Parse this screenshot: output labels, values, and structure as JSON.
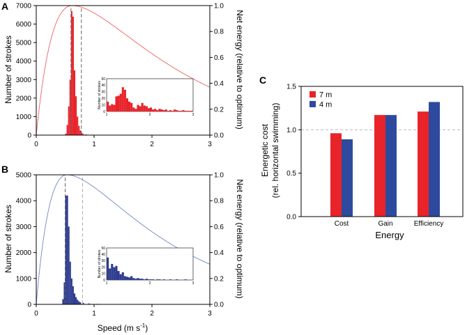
{
  "chart_data": [
    {
      "panel": "A",
      "type": "bar",
      "xlabel": "",
      "ylabel": "Number of strokes",
      "y2label": "Net energy (relative to optimum)",
      "xlim": [
        0,
        3
      ],
      "ylim": [
        0,
        7000
      ],
      "y2lim": [
        0,
        1.0
      ],
      "xticks": [
        "0",
        "1",
        "2",
        "3"
      ],
      "yticks": [
        "0",
        "1000",
        "2000",
        "3000",
        "4000",
        "5000",
        "6000",
        "7000"
      ],
      "y2ticks": [
        "0.0",
        "0.2",
        "0.4",
        "0.6",
        "0.8",
        "1.0"
      ],
      "color": "#e8232a",
      "line_color": "#f0706f",
      "bin_width": 0.025,
      "bins": [
        {
          "x": 0.5,
          "count": 80
        },
        {
          "x": 0.525,
          "count": 550
        },
        {
          "x": 0.55,
          "count": 1550
        },
        {
          "x": 0.575,
          "count": 3000
        },
        {
          "x": 0.6,
          "count": 6700
        },
        {
          "x": 0.625,
          "count": 6400
        },
        {
          "x": 0.65,
          "count": 3500
        },
        {
          "x": 0.675,
          "count": 2100
        },
        {
          "x": 0.7,
          "count": 1000
        },
        {
          "x": 0.725,
          "count": 500
        },
        {
          "x": 0.75,
          "count": 250
        },
        {
          "x": 0.775,
          "count": 120
        },
        {
          "x": 0.8,
          "count": 60
        },
        {
          "x": 0.85,
          "count": 40
        },
        {
          "x": 0.95,
          "count": 25
        },
        {
          "x": 1.1,
          "count": 20
        },
        {
          "x": 1.3,
          "count": 15
        },
        {
          "x": 1.6,
          "count": 10
        },
        {
          "x": 2.0,
          "count": 8
        }
      ],
      "curve": {
        "type": "net_energy",
        "peak_speed": 0.62,
        "min_speed": 0.0,
        "values_at_3": 0.37
      },
      "vlines": [
        {
          "x": 0.6,
          "style": "dashed",
          "color": "#666666"
        },
        {
          "x": 0.78,
          "style": "dashed",
          "color": "#666666"
        }
      ],
      "inset": {
        "ylabel": "Number of strokes",
        "xlim": [
          1,
          3
        ],
        "ylim": [
          0,
          50
        ],
        "xticks": [
          "1",
          "2",
          "3"
        ],
        "yticks": [
          "0",
          "10",
          "20",
          "30",
          "40",
          "50"
        ],
        "bin_width": 0.05,
        "values": [
          15,
          9,
          11,
          10,
          23,
          24,
          27,
          37,
          33,
          20,
          15,
          13,
          6,
          4,
          10,
          8,
          13,
          9,
          8,
          5,
          6,
          3,
          4,
          2,
          4,
          3,
          2,
          3,
          1,
          2,
          1,
          3,
          2,
          1,
          1,
          2,
          1,
          1,
          1,
          1
        ]
      }
    },
    {
      "panel": "B",
      "type": "bar",
      "xlabel": "Speed (m s",
      "xlabel_sup": "-1",
      "xlabel_end": ")",
      "ylabel": "Number of strokes",
      "y2label": "Net energy (relative to optimum)",
      "xlim": [
        0,
        3
      ],
      "ylim": [
        0,
        5000
      ],
      "y2lim": [
        0,
        1.0
      ],
      "xticks": [
        "0",
        "1",
        "2",
        "3"
      ],
      "yticks": [
        "0",
        "1000",
        "2000",
        "3000",
        "4000",
        "5000"
      ],
      "y2ticks": [
        "0.0",
        "0.2",
        "0.4",
        "0.6",
        "0.8",
        "1.0"
      ],
      "color": "#2e3d8f",
      "line_color": "#7b93c9",
      "bin_width": 0.025,
      "bins": [
        {
          "x": 0.45,
          "count": 200
        },
        {
          "x": 0.475,
          "count": 850
        },
        {
          "x": 0.5,
          "count": 4200
        },
        {
          "x": 0.525,
          "count": 4200
        },
        {
          "x": 0.55,
          "count": 3000
        },
        {
          "x": 0.575,
          "count": 1650
        },
        {
          "x": 0.6,
          "count": 1000
        },
        {
          "x": 0.625,
          "count": 700
        },
        {
          "x": 0.65,
          "count": 420
        },
        {
          "x": 0.675,
          "count": 280
        },
        {
          "x": 0.7,
          "count": 180
        },
        {
          "x": 0.725,
          "count": 120
        },
        {
          "x": 0.75,
          "count": 80
        },
        {
          "x": 0.8,
          "count": 55
        },
        {
          "x": 0.9,
          "count": 35
        },
        {
          "x": 1.05,
          "count": 20
        },
        {
          "x": 1.3,
          "count": 12
        },
        {
          "x": 1.6,
          "count": 8
        }
      ],
      "curve": {
        "type": "net_energy",
        "peak_speed": 0.53,
        "min_speed": 0.0,
        "values_at_3": 0.31
      },
      "vlines": [
        {
          "x": 0.5,
          "style": "dashed",
          "color": "#666666"
        },
        {
          "x": 0.8,
          "style": "dashed",
          "color": "#aaaaaa"
        }
      ],
      "inset": {
        "ylabel": "Number of strokes",
        "xlim": [
          1,
          3
        ],
        "ylim": [
          0,
          50
        ],
        "xticks": [
          "1",
          "2",
          "3"
        ],
        "yticks": [
          "0",
          "10",
          "20",
          "30",
          "40",
          "50"
        ],
        "bin_width": 0.05,
        "values": [
          35,
          18,
          25,
          20,
          22,
          14,
          9,
          12,
          6,
          5,
          4,
          6,
          3,
          2,
          3,
          2,
          2,
          1,
          2,
          1,
          1,
          1,
          0,
          1,
          1,
          0,
          1,
          0,
          0,
          1,
          0,
          0,
          1,
          0,
          0,
          0,
          1,
          0,
          0,
          0
        ]
      }
    },
    {
      "panel": "C",
      "type": "bar",
      "xlabel": "Energy",
      "ylabel": "Energetic cost",
      "ylabel2": "(rel. horizontal swimming)",
      "categories": [
        "Cost",
        "Gain",
        "Efficiency"
      ],
      "ylim": [
        0,
        1.5
      ],
      "yticks": [
        "0.0",
        "0.5",
        "1.0",
        "1.5"
      ],
      "reference_line": 1.0,
      "legend_position": "top-left",
      "series": [
        {
          "name": "7 m",
          "color": "#e8232a",
          "values": [
            0.96,
            1.17,
            1.21
          ]
        },
        {
          "name": "4 m",
          "color": "#2e4a9e",
          "values": [
            0.89,
            1.17,
            1.32
          ]
        }
      ]
    }
  ]
}
